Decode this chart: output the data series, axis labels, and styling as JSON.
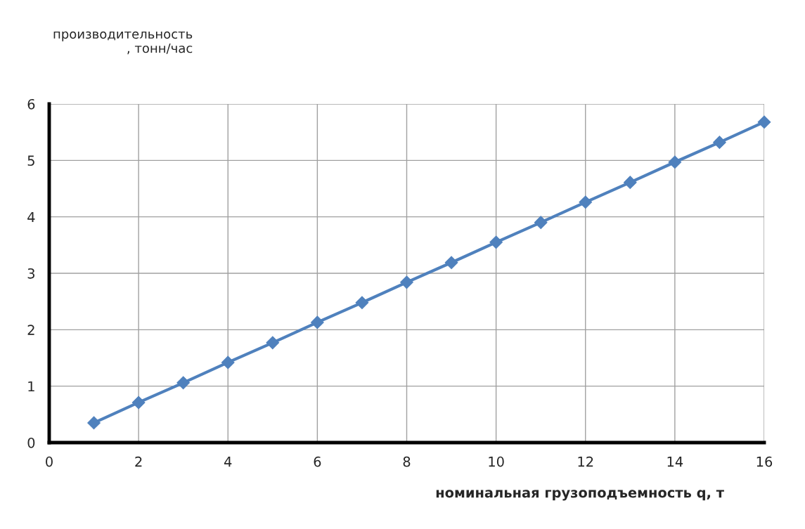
{
  "chart_data": {
    "type": "line",
    "xlabel": "номинальная грузоподъемность q, т",
    "ylabel": "производительность\n, тонн/час",
    "x": [
      1,
      2,
      3,
      4,
      5,
      6,
      7,
      8,
      9,
      10,
      11,
      12,
      13,
      14,
      15,
      16
    ],
    "series": [
      {
        "color": "#4f81bd",
        "values": [
          0.35,
          0.71,
          1.06,
          1.42,
          1.77,
          2.13,
          2.48,
          2.84,
          3.19,
          3.55,
          3.9,
          4.26,
          4.61,
          4.97,
          5.32,
          5.68
        ]
      }
    ],
    "xlim": [
      0,
      16
    ],
    "xticks": [
      0,
      2,
      4,
      6,
      8,
      10,
      12,
      14,
      16
    ],
    "ylim": [
      0,
      6
    ],
    "yticks": [
      0,
      1,
      2,
      3,
      4,
      5,
      6
    ],
    "grid": true,
    "marker": "diamond",
    "line_style": "solid",
    "legend": false
  }
}
